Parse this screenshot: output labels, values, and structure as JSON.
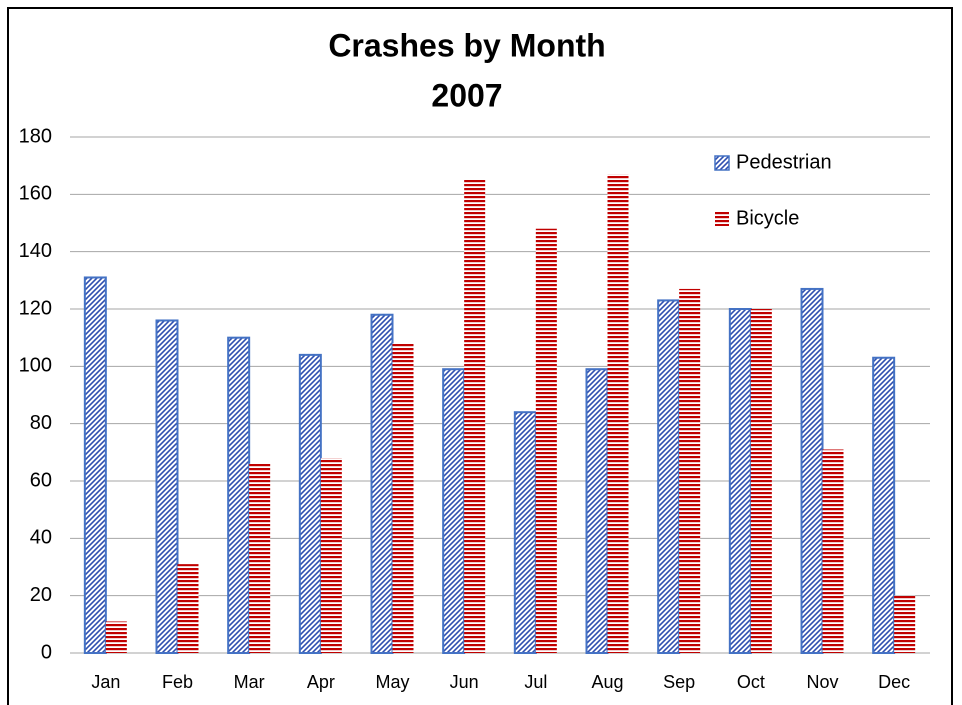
{
  "chart_data": {
    "type": "bar",
    "title": "Crashes by Month",
    "subtitle": "2007",
    "categories": [
      "Jan",
      "Feb",
      "Mar",
      "Apr",
      "May",
      "Jun",
      "Jul",
      "Aug",
      "Sep",
      "Oct",
      "Nov",
      "Dec"
    ],
    "series": [
      {
        "name": "Pedestrian",
        "color": "#2f4fb0",
        "values": [
          131,
          116,
          110,
          104,
          118,
          99,
          84,
          99,
          123,
          120,
          127,
          103
        ]
      },
      {
        "name": "Bicycle",
        "color": "#c00000",
        "values": [
          11,
          31,
          66,
          68,
          108,
          165,
          148,
          167,
          127,
          120,
          71,
          20
        ]
      }
    ],
    "ylim": [
      0,
      180
    ],
    "yticks": [
      0,
      20,
      40,
      60,
      80,
      100,
      120,
      140,
      160,
      180
    ],
    "grid": true,
    "legend": "top-right"
  }
}
